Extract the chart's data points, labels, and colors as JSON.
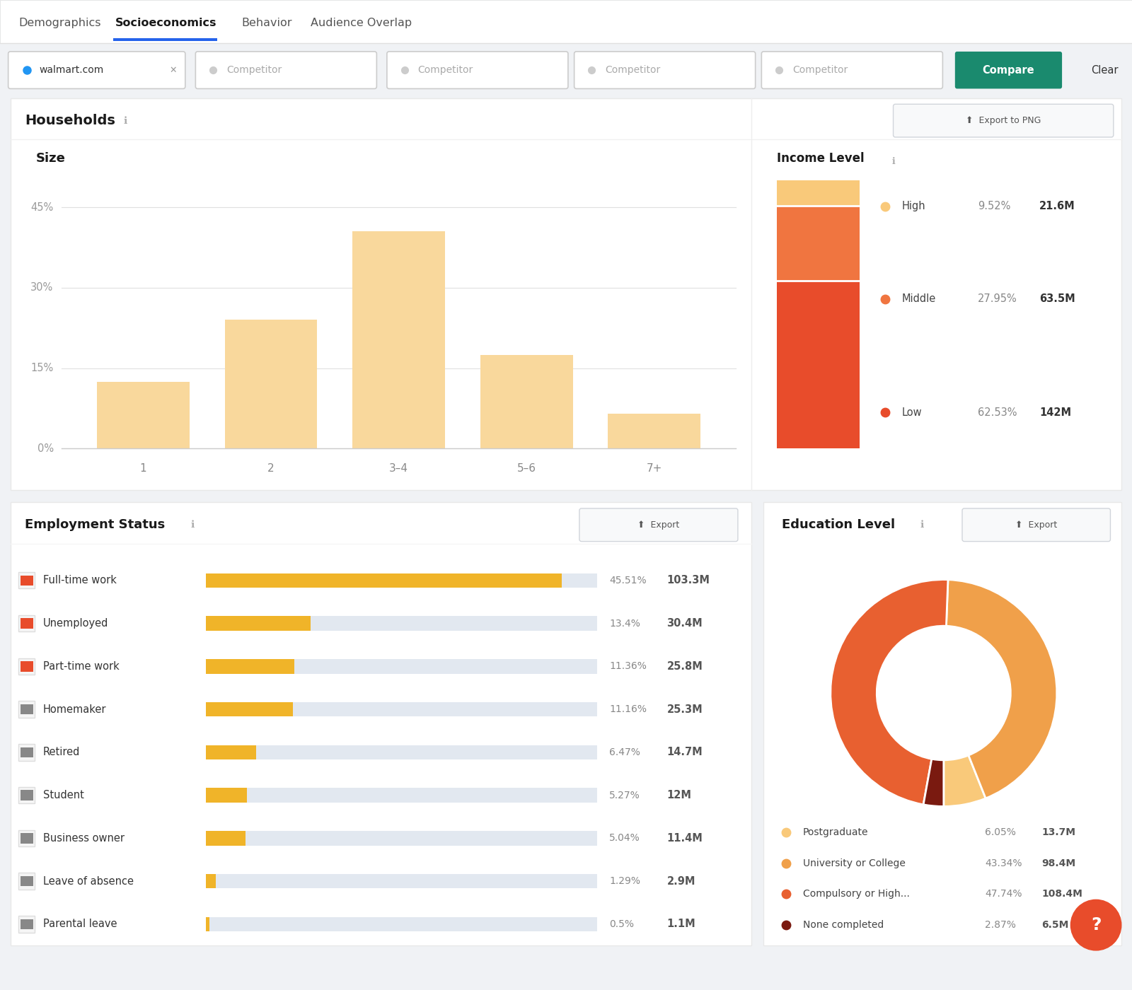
{
  "bg_color": "#f0f2f5",
  "panel_color": "#ffffff",
  "tab_labels": [
    "Demographics",
    "Socioeconomics",
    "Behavior",
    "Audience Overlap"
  ],
  "active_tab": 1,
  "tab_bar_color": "#2563eb",
  "bar_categories": [
    "1",
    "2",
    "3–4",
    "5–6",
    "7+"
  ],
  "bar_values": [
    12.5,
    24.0,
    40.5,
    17.5,
    6.5
  ],
  "bar_color": "#f9d89c",
  "bar_yticks": [
    0,
    15,
    30,
    45
  ],
  "bar_ytick_labels": [
    "0%",
    "15%",
    "30%",
    "45%"
  ],
  "income_title": "Income Level",
  "income_labels": [
    "High",
    "Middle",
    "Low"
  ],
  "income_pcts": [
    9.52,
    27.95,
    62.53
  ],
  "income_pct_strs": [
    "9.52%",
    "27.95%",
    "62.53%"
  ],
  "income_values": [
    "21.6M",
    "63.5M",
    "142M"
  ],
  "income_colors": [
    "#f9c97a",
    "#f07540",
    "#e84c2b"
  ],
  "employment_title": "Employment Status",
  "employment_labels": [
    "Full-time work",
    "Unemployed",
    "Part-time work",
    "Homemaker",
    "Retired",
    "Student",
    "Business owner",
    "Leave of absence",
    "Parental leave"
  ],
  "employment_pcts": [
    45.51,
    13.4,
    11.36,
    11.16,
    6.47,
    5.27,
    5.04,
    1.29,
    0.5
  ],
  "employment_pct_strs": [
    "45.51%",
    "13.4%",
    "11.36%",
    "11.16%",
    "6.47%",
    "5.27%",
    "5.04%",
    "1.29%",
    "0.5%"
  ],
  "employment_values": [
    "103.3M",
    "30.4M",
    "25.8M",
    "25.3M",
    "14.7M",
    "12M",
    "11.4M",
    "2.9M",
    "1.1M"
  ],
  "employment_bar_color": "#f0b429",
  "employment_bar_bg": "#e2e8f0",
  "education_title": "Education Level",
  "education_labels": [
    "Postgraduate",
    "University or College",
    "Compulsory or High...",
    "None completed"
  ],
  "education_pcts": [
    6.05,
    43.34,
    47.74,
    2.87
  ],
  "education_pct_strs": [
    "6.05%",
    "43.34%",
    "47.74%",
    "2.87%"
  ],
  "education_values": [
    "13.7M",
    "98.4M",
    "108.4M",
    "6.5M"
  ],
  "education_colors": [
    "#f9c97a",
    "#f0a04a",
    "#e86030",
    "#7a1a10"
  ],
  "compare_btn_color": "#1a8a6e",
  "help_btn_color": "#e84c2b",
  "export_bg": "#f8f9fa",
  "export_border": "#d1d5db"
}
